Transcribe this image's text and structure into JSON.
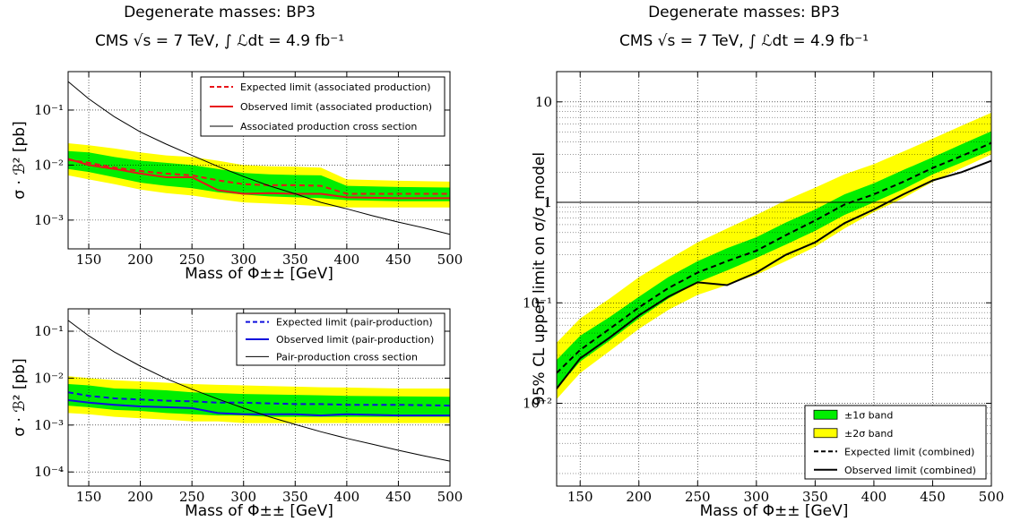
{
  "left_title": {
    "line1": "Degenerate masses: BP3",
    "line2": "CMS √s = 7 TeV, ∫ ℒdt = 4.9 fb⁻¹"
  },
  "right_title": {
    "line1": "Degenerate masses: BP3",
    "line2": "CMS √s = 7 TeV, ∫ ℒdt = 4.9 fb⁻¹"
  },
  "colors": {
    "band1": "#00ee00",
    "band2": "#ffff00",
    "assoc_limit": "#e8141a",
    "pair_limit": "#1010dd",
    "cross_section": "#000000"
  },
  "chart_data": [
    {
      "type": "line",
      "id": "assoc",
      "log_y": true,
      "xlabel": "Mass of Φ±± [GeV]",
      "ylabel": "σ · ℬ² [pb]",
      "xlim": [
        130,
        500
      ],
      "ylim": [
        0.0003,
        0.5
      ],
      "x_ticks": [
        150,
        200,
        250,
        300,
        350,
        400,
        450,
        500
      ],
      "y_ticks": [
        {
          "value": 0.1,
          "label": "10⁻¹"
        },
        {
          "value": 0.01,
          "label": "10⁻²"
        },
        {
          "value": 0.001,
          "label": "10⁻³"
        }
      ],
      "grid": true,
      "legend_position": "top-right",
      "x": [
        130,
        150,
        175,
        200,
        225,
        250,
        275,
        300,
        325,
        350,
        375,
        400,
        450,
        500
      ],
      "band2": {
        "low": [
          0.0065,
          0.0055,
          0.0045,
          0.0036,
          0.0031,
          0.0028,
          0.0024,
          0.0021,
          0.002,
          0.0019,
          0.0018,
          0.0017,
          0.0017,
          0.0017
        ],
        "high": [
          0.025,
          0.023,
          0.02,
          0.017,
          0.015,
          0.014,
          0.012,
          0.01,
          0.0095,
          0.0093,
          0.009,
          0.0055,
          0.0052,
          0.005
        ]
      },
      "band1": {
        "low": [
          0.0085,
          0.0075,
          0.006,
          0.0048,
          0.0042,
          0.0038,
          0.0032,
          0.0029,
          0.0027,
          0.0026,
          0.0025,
          0.0023,
          0.0022,
          0.0022
        ],
        "high": [
          0.018,
          0.017,
          0.014,
          0.012,
          0.011,
          0.01,
          0.0085,
          0.0072,
          0.0068,
          0.0066,
          0.0065,
          0.0042,
          0.004,
          0.0039
        ]
      },
      "series": [
        {
          "name": "Expected limit (associated production)",
          "style": "dashed",
          "color": "#e8141a",
          "values": [
            0.0125,
            0.011,
            0.009,
            0.0078,
            0.007,
            0.0065,
            0.0053,
            0.0045,
            0.0043,
            0.0043,
            0.0042,
            0.003,
            0.003,
            0.003
          ]
        },
        {
          "name": "Observed limit (associated production)",
          "style": "solid",
          "color": "#e8141a",
          "values": [
            0.013,
            0.01,
            0.0085,
            0.007,
            0.006,
            0.006,
            0.0035,
            0.003,
            0.0031,
            0.003,
            0.003,
            0.0026,
            0.0025,
            0.0025
          ]
        },
        {
          "name": "Associated production cross section",
          "style": "thin",
          "color": "#000000",
          "x": [
            130,
            150,
            175,
            200,
            225,
            250,
            275,
            300,
            325,
            350,
            375,
            400,
            425,
            450,
            475,
            500
          ],
          "values": [
            0.33,
            0.16,
            0.075,
            0.04,
            0.024,
            0.015,
            0.0095,
            0.0062,
            0.0042,
            0.003,
            0.0021,
            0.0016,
            0.0012,
            0.00092,
            0.00072,
            0.00055
          ]
        }
      ]
    },
    {
      "type": "line",
      "id": "pair",
      "log_y": true,
      "xlabel": "Mass of Φ±± [GeV]",
      "ylabel": "σ · ℬ² [pb]",
      "xlim": [
        130,
        500
      ],
      "ylim": [
        5e-05,
        0.3
      ],
      "x_ticks": [
        150,
        200,
        250,
        300,
        350,
        400,
        450,
        500
      ],
      "y_ticks": [
        {
          "value": 0.1,
          "label": "10⁻¹"
        },
        {
          "value": 0.01,
          "label": "10⁻²"
        },
        {
          "value": 0.001,
          "label": "10⁻³"
        },
        {
          "value": 0.0001,
          "label": "10⁻⁴"
        }
      ],
      "grid": true,
      "legend_position": "top-right",
      "x": [
        130,
        150,
        175,
        200,
        225,
        250,
        275,
        300,
        325,
        350,
        375,
        400,
        450,
        500
      ],
      "band2": {
        "low": [
          0.0018,
          0.0017,
          0.0015,
          0.0014,
          0.0013,
          0.0012,
          0.0012,
          0.0011,
          0.0011,
          0.0011,
          0.0011,
          0.0011,
          0.0011,
          0.0011
        ],
        "high": [
          0.011,
          0.01,
          0.009,
          0.0085,
          0.008,
          0.0075,
          0.0072,
          0.007,
          0.0068,
          0.0066,
          0.0064,
          0.0063,
          0.006,
          0.006
        ]
      },
      "band1": {
        "low": [
          0.0026,
          0.0024,
          0.0021,
          0.002,
          0.0018,
          0.0017,
          0.0016,
          0.0016,
          0.0015,
          0.0015,
          0.0015,
          0.0015,
          0.0015,
          0.0015
        ],
        "high": [
          0.0075,
          0.007,
          0.006,
          0.0058,
          0.0055,
          0.005,
          0.0048,
          0.0046,
          0.0045,
          0.0044,
          0.0043,
          0.0042,
          0.0041,
          0.004
        ]
      },
      "series": [
        {
          "name": "Expected limit (pair-production)",
          "style": "dashed",
          "color": "#1010dd",
          "values": [
            0.005,
            0.0042,
            0.0037,
            0.0035,
            0.0033,
            0.0032,
            0.003,
            0.003,
            0.0029,
            0.0028,
            0.0028,
            0.0027,
            0.0027,
            0.0026
          ]
        },
        {
          "name": "Observed limit (pair-production)",
          "style": "solid",
          "color": "#1010dd",
          "values": [
            0.0034,
            0.003,
            0.0027,
            0.0025,
            0.0024,
            0.0023,
            0.0018,
            0.0017,
            0.0017,
            0.0017,
            0.0016,
            0.0017,
            0.0016,
            0.0016
          ]
        },
        {
          "name": "Pair-production cross section",
          "style": "thin",
          "color": "#000000",
          "x": [
            130,
            150,
            175,
            200,
            225,
            250,
            275,
            300,
            325,
            350,
            375,
            400,
            425,
            450,
            475,
            500
          ],
          "values": [
            0.17,
            0.08,
            0.036,
            0.018,
            0.0098,
            0.0058,
            0.0036,
            0.0023,
            0.0015,
            0.00103,
            0.00072,
            0.00052,
            0.00039,
            0.00029,
            0.00022,
            0.00017
          ]
        }
      ]
    },
    {
      "type": "line",
      "id": "combined",
      "log_y": true,
      "xlabel": "Mass of Φ±± [GeV]",
      "ylabel": "95% CL upper limit on σ/σ_model",
      "xlim": [
        130,
        500
      ],
      "ylim": [
        0.0015,
        20
      ],
      "x_ticks": [
        150,
        200,
        250,
        300,
        350,
        400,
        450,
        500
      ],
      "y_ticks": [
        {
          "value": 10,
          "label": "10"
        },
        {
          "value": 1,
          "label": "1"
        },
        {
          "value": 0.1,
          "label": "10⁻¹"
        },
        {
          "value": 0.01,
          "label": "10⁻²"
        }
      ],
      "reference_line": 1,
      "grid": true,
      "legend_position": "bottom-right",
      "x": [
        130,
        150,
        175,
        200,
        225,
        250,
        275,
        300,
        325,
        350,
        375,
        400,
        425,
        450,
        475,
        500
      ],
      "band2": {
        "low": [
          0.011,
          0.02,
          0.033,
          0.055,
          0.085,
          0.12,
          0.15,
          0.19,
          0.26,
          0.36,
          0.55,
          0.8,
          1.1,
          1.6,
          2.2,
          3.0
        ],
        "high": [
          0.04,
          0.07,
          0.11,
          0.18,
          0.27,
          0.4,
          0.55,
          0.75,
          1.05,
          1.4,
          1.9,
          2.4,
          3.2,
          4.3,
          5.8,
          7.8
        ]
      },
      "band1": {
        "low": [
          0.014,
          0.026,
          0.042,
          0.07,
          0.11,
          0.16,
          0.21,
          0.28,
          0.38,
          0.52,
          0.75,
          1.0,
          1.35,
          1.9,
          2.5,
          3.3
        ],
        "high": [
          0.027,
          0.047,
          0.072,
          0.115,
          0.18,
          0.26,
          0.35,
          0.45,
          0.63,
          0.85,
          1.2,
          1.55,
          2.1,
          2.8,
          3.8,
          5.1
        ]
      },
      "series": [
        {
          "name": "Expected limit (combined)",
          "style": "dashed",
          "color": "#000000",
          "values": [
            0.02,
            0.034,
            0.055,
            0.09,
            0.14,
            0.2,
            0.26,
            0.33,
            0.47,
            0.66,
            0.95,
            1.2,
            1.6,
            2.2,
            2.9,
            3.9
          ]
        },
        {
          "name": "Observed limit (combined)",
          "style": "solid",
          "color": "#000000",
          "values": [
            0.014,
            0.028,
            0.045,
            0.075,
            0.115,
            0.16,
            0.15,
            0.2,
            0.3,
            0.4,
            0.62,
            0.85,
            1.2,
            1.65,
            2.0,
            2.6
          ]
        }
      ],
      "legend_entries": [
        {
          "label": "±1σ band",
          "kind": "patch",
          "color": "#00ee00"
        },
        {
          "label": "±2σ band",
          "kind": "patch",
          "color": "#ffff00"
        },
        {
          "label": "Expected limit (combined)",
          "kind": "dashed"
        },
        {
          "label": "Observed limit (combined)",
          "kind": "solid"
        }
      ]
    }
  ]
}
